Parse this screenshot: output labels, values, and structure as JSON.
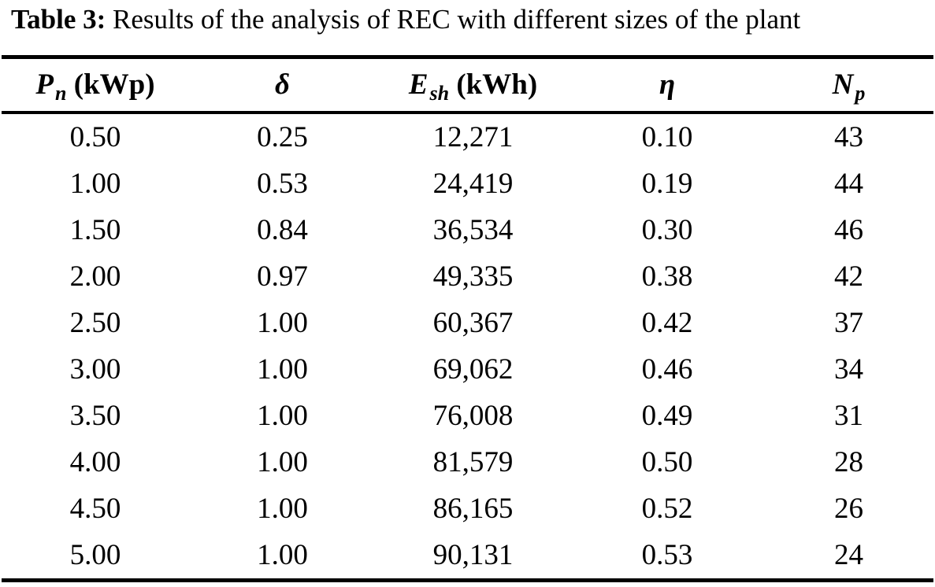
{
  "table": {
    "caption_label": "Table 3:",
    "caption_text": "Results of the analysis of REC with different sizes of the plant",
    "columns": [
      {
        "symbol": "P",
        "subscript": "n",
        "unit": "(kWp)"
      },
      {
        "symbol": "δ",
        "subscript": "",
        "unit": ""
      },
      {
        "symbol": "E",
        "subscript": "sh",
        "unit": "(kWh)"
      },
      {
        "symbol": "η",
        "subscript": "",
        "unit": ""
      },
      {
        "symbol": "N",
        "subscript": "p",
        "unit": ""
      }
    ],
    "rows": [
      [
        "0.50",
        "0.25",
        "12,271",
        "0.10",
        "43"
      ],
      [
        "1.00",
        "0.53",
        "24,419",
        "0.19",
        "44"
      ],
      [
        "1.50",
        "0.84",
        "36,534",
        "0.30",
        "46"
      ],
      [
        "2.00",
        "0.97",
        "49,335",
        "0.38",
        "42"
      ],
      [
        "2.50",
        "1.00",
        "60,367",
        "0.42",
        "37"
      ],
      [
        "3.00",
        "1.00",
        "69,062",
        "0.46",
        "34"
      ],
      [
        "3.50",
        "1.00",
        "76,008",
        "0.49",
        "31"
      ],
      [
        "4.00",
        "1.00",
        "81,579",
        "0.50",
        "28"
      ],
      [
        "4.50",
        "1.00",
        "86,165",
        "0.52",
        "26"
      ],
      [
        "5.00",
        "1.00",
        "90,131",
        "0.53",
        "24"
      ]
    ]
  }
}
